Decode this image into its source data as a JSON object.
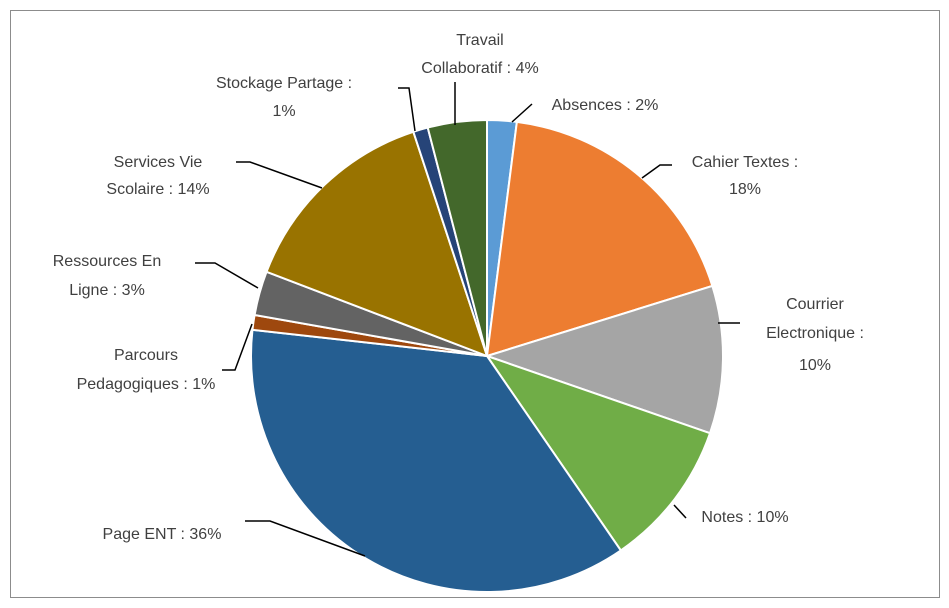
{
  "chart_data": {
    "type": "pie",
    "labels": [
      [
        "Absences : 2%"
      ],
      [
        "Cahier Textes :",
        "18%"
      ],
      [
        "Courrier",
        "Electronique :",
        "10%"
      ],
      [
        "Notes : 10%"
      ],
      [
        "Page ENT : 36%"
      ],
      [
        "Parcours",
        "Pedagogiques : 1%"
      ],
      [
        "Ressources En",
        "Ligne : 3%"
      ],
      [
        "Services Vie",
        "Scolaire : 14%"
      ],
      [
        "Stockage Partage :",
        "1%"
      ],
      [
        "Travail",
        "Collaboratif : 4%"
      ]
    ],
    "values": [
      2,
      18,
      10,
      10,
      36,
      1,
      3,
      14,
      1,
      4
    ],
    "colors": [
      "#5b9bd5",
      "#ed7d31",
      "#a5a5a5",
      "#70ad47",
      "#255e91",
      "#9e480e",
      "#636363",
      "#997300",
      "#264478",
      "#43682b"
    ]
  }
}
